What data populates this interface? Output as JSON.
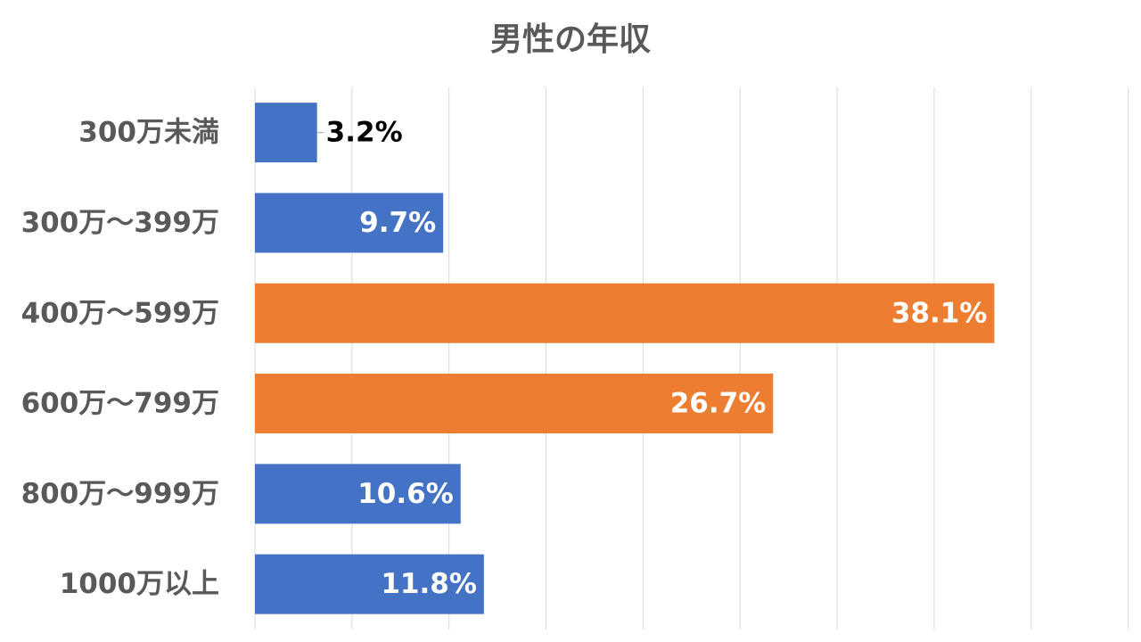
{
  "chart_data": {
    "type": "bar",
    "orientation": "horizontal",
    "title": "男性の年収",
    "xlabel": "",
    "ylabel": "",
    "categories": [
      "300万未満",
      "300万～399万",
      "400万～599万",
      "600万～799万",
      "800万～999万",
      "1000万以上"
    ],
    "values": [
      3.2,
      9.7,
      38.1,
      26.7,
      10.6,
      11.8
    ],
    "data_labels": [
      "3.2%",
      "9.7%",
      "38.1%",
      "26.7%",
      "10.6%",
      "11.8%"
    ],
    "xlim": [
      0,
      45
    ],
    "grid": true,
    "legend": "none",
    "bar_colors": [
      "#4472C4",
      "#4472C4",
      "#ED7D31",
      "#ED7D31",
      "#4472C4",
      "#4472C4"
    ],
    "label_colors": [
      "#000000",
      "#ffffff",
      "#ffffff",
      "#ffffff",
      "#ffffff",
      "#ffffff"
    ],
    "gridline_color": "#D9D9D9"
  }
}
